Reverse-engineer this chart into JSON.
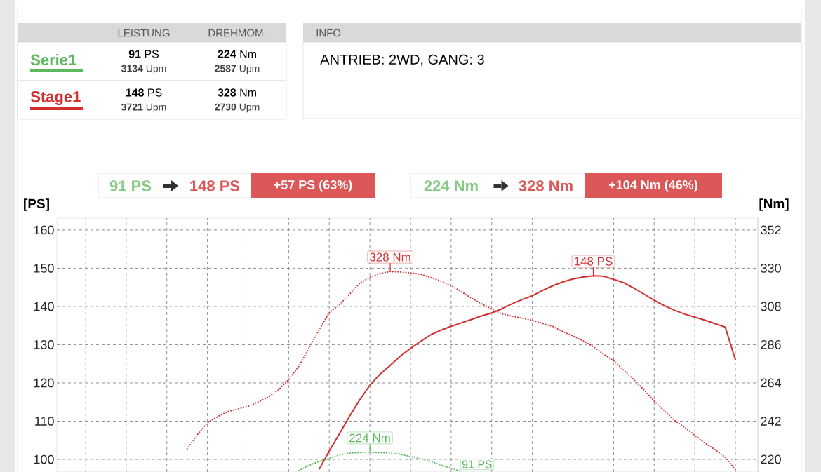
{
  "chart_data": {
    "type": "line",
    "ylabel": "[PS]",
    "y2label": "[Nm]",
    "categories": [
      null,
      null,
      null,
      null,
      null,
      null,
      null,
      null,
      null,
      null,
      null,
      null,
      null,
      null,
      null,
      null,
      null,
      null,
      null,
      null,
      null,
      null,
      null,
      null,
      null,
      null,
      null,
      null,
      null,
      null,
      null,
      null,
      null,
      null,
      null,
      null,
      null,
      null,
      null,
      null,
      null,
      null,
      null,
      null,
      null,
      null,
      null,
      null,
      null,
      null,
      null,
      null,
      null,
      null,
      null,
      null,
      null,
      null,
      null,
      null,
      null,
      null,
      null,
      null,
      null,
      null,
      null,
      null,
      null
    ],
    "ylim": [
      96.7,
      163.1
    ],
    "yticks": [
      100,
      110,
      120,
      130,
      140,
      150,
      160
    ],
    "y2lim": [
      212.7,
      358.8
    ],
    "y2ticks": [
      220,
      242,
      264,
      286,
      308,
      330,
      352
    ],
    "grid": true,
    "legend": "top left",
    "tick_labels": "y",
    "series": [
      {
        "name": "Serie1",
        "color": "#5cb85c",
        "axis": "y2",
        "line_style": "dotted",
        "values": [
          null,
          null,
          null,
          null,
          null,
          null,
          null,
          null,
          null,
          null,
          null,
          null,
          null,
          null,
          null,
          null,
          null,
          null,
          null,
          null,
          null,
          null,
          null,
          213.5,
          216.5,
          218.8,
          220.5,
          222.5,
          223.6,
          223.8,
          224,
          223.8,
          223.6,
          222.9,
          221.6,
          220.4,
          218.7,
          216.7,
          214.8,
          213,
          null,
          null,
          null,
          null,
          null,
          null,
          null,
          null,
          null,
          null,
          null,
          null,
          null,
          null,
          null,
          null,
          null,
          null,
          null,
          null,
          null,
          null,
          null,
          null,
          null,
          null,
          null,
          null,
          null
        ]
      },
      {
        "name": "Stage1",
        "color": "#d32f2f",
        "line_style": "solid",
        "values": [
          null,
          null,
          null,
          null,
          null,
          null,
          null,
          null,
          null,
          null,
          null,
          null,
          null,
          null,
          null,
          null,
          null,
          null,
          null,
          null,
          null,
          null,
          null,
          null,
          null,
          97.4,
          102.2,
          106.7,
          111.3,
          115.6,
          119.4,
          122.3,
          124.6,
          127,
          129,
          130.9,
          132.6,
          133.8,
          134.8,
          135.7,
          136.6,
          137.5,
          138.3,
          139.4,
          140.7,
          141.8,
          142.8,
          144.2,
          145.4,
          146.4,
          147.2,
          147.7,
          148,
          147.9,
          147.1,
          146.2,
          144.8,
          143.2,
          141.6,
          140.2,
          139,
          138,
          137.2,
          136.4,
          135.5,
          134.6,
          126,
          null,
          null
        ]
      },
      {
        "color": "#d32f2f",
        "axis": "y2",
        "line_style": "dotted",
        "values": [
          null,
          null,
          null,
          null,
          null,
          null,
          null,
          null,
          null,
          null,
          null,
          null,
          226,
          234.1,
          241,
          244.6,
          247.5,
          249,
          250.5,
          253,
          255.8,
          260,
          266,
          273.5,
          284,
          294.6,
          304.4,
          309,
          315,
          321.3,
          324.7,
          327,
          328,
          327.8,
          327.3,
          326.5,
          324.6,
          322.5,
          320,
          316.5,
          312.8,
          309.5,
          306.4,
          303.7,
          302.4,
          301.2,
          300,
          298.2,
          296.5,
          293.5,
          291,
          288.2,
          284.8,
          280.6,
          276.7,
          271.3,
          265.8,
          260,
          253.5,
          248,
          242.4,
          238.4,
          233.8,
          229.3,
          225.6,
          221.2,
          214,
          null,
          null
        ]
      }
    ],
    "annotations": [
      "LEISTUNG",
      "DREHMOM.",
      "**91** PS",
      "**3134** Upm",
      "**224** Nm",
      "**2587** Upm",
      "**148** PS",
      "**3721** Upm",
      "**328** Nm",
      "**2730** Upm",
      "INFO",
      "ANTRIEB: 2WD,  GANG: 3",
      "91 PS",
      "148 PS",
      "+57 PS  (63%)",
      "224 Nm",
      "328 Nm",
      "+104 Nm  (46%)",
      "328 Nm",
      "148 PS",
      "224 Nm",
      "91 PS"
    ]
  }
}
